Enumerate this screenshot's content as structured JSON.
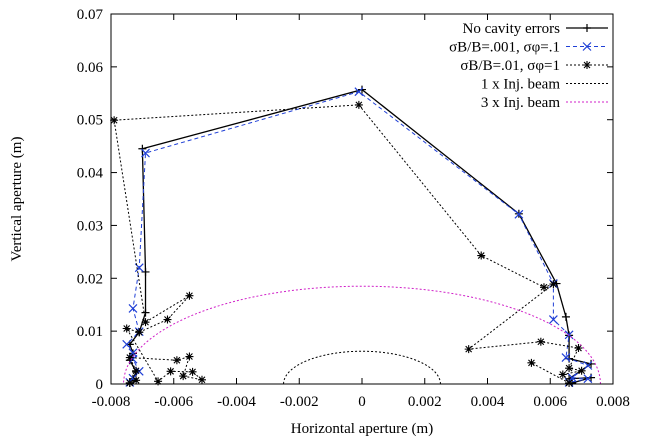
{
  "chart_data": {
    "type": "line",
    "xlabel": "Horizontal aperture (m)",
    "ylabel": "Vertical aperture (m)",
    "xlim": [
      -0.008,
      0.008
    ],
    "ylim": [
      0,
      0.07
    ],
    "x_ticks": [
      -0.008,
      -0.006,
      -0.004,
      -0.002,
      0,
      0.002,
      0.004,
      0.006,
      0.008
    ],
    "x_tick_labels": [
      "-0.008",
      "-0.006",
      "-0.004",
      "-0.002",
      "0",
      "0.002",
      "0.004",
      "0.006",
      "0.008"
    ],
    "y_ticks": [
      0,
      0.01,
      0.02,
      0.03,
      0.04,
      0.05,
      0.06,
      0.07
    ],
    "y_tick_labels": [
      "0",
      "0.01",
      "0.02",
      "0.03",
      "0.04",
      "0.05",
      "0.06",
      "0.07"
    ],
    "grid": false,
    "legend_position": "top-right",
    "series": [
      {
        "name": "No cavity errors",
        "color": "#000000",
        "line": "solid",
        "marker": "plus",
        "points": [
          [
            -0.0074,
            0.0002
          ],
          [
            -0.0073,
            0.001
          ],
          [
            -0.0072,
            0.0023
          ],
          [
            -0.0074,
            0.0045
          ],
          [
            -0.0073,
            0.0058
          ],
          [
            -0.0074,
            0.0075
          ],
          [
            -0.0071,
            0.0098
          ],
          [
            -0.0069,
            0.0135
          ],
          [
            -0.0069,
            0.0212
          ],
          [
            -0.007,
            0.0445
          ],
          [
            0.0,
            0.0557
          ],
          [
            0.005,
            0.0322
          ],
          [
            0.0062,
            0.019
          ],
          [
            0.0065,
            0.0127
          ],
          [
            0.0066,
            0.0092
          ],
          [
            0.0066,
            0.0048
          ],
          [
            0.0073,
            0.0038
          ],
          [
            0.0066,
            0.001
          ],
          [
            0.0073,
            0.0012
          ],
          [
            0.0067,
            0.0002
          ]
        ]
      },
      {
        "name": "σB/B=.001, σφ=.1",
        "color": "#1f3fd6",
        "line": "dashed",
        "marker": "x",
        "points": [
          [
            -0.0074,
            0.0003
          ],
          [
            -0.0073,
            0.0011
          ],
          [
            -0.0071,
            0.0024
          ],
          [
            -0.0073,
            0.0047
          ],
          [
            -0.0073,
            0.0059
          ],
          [
            -0.0075,
            0.0075
          ],
          [
            -0.0071,
            0.0099
          ],
          [
            -0.0073,
            0.0143
          ],
          [
            -0.0071,
            0.022
          ],
          [
            -0.0069,
            0.0437
          ],
          [
            -0.0001,
            0.0553
          ],
          [
            0.005,
            0.0321
          ],
          [
            0.0061,
            0.019
          ],
          [
            0.0061,
            0.0122
          ],
          [
            0.0066,
            0.0093
          ],
          [
            0.0065,
            0.005
          ],
          [
            0.0072,
            0.0035
          ],
          [
            0.0067,
            0.0012
          ],
          [
            0.0072,
            0.001
          ],
          [
            0.0066,
            0.0003
          ]
        ]
      },
      {
        "name": "σB/B=.01, σφ=1",
        "color": "#000000",
        "line": "dotted",
        "marker": "star",
        "points": [
          [
            -0.0074,
            0.0002
          ],
          [
            -0.0072,
            0.0007
          ],
          [
            -0.0072,
            0.0025
          ],
          [
            -0.0074,
            0.005
          ],
          [
            -0.0059,
            0.0045
          ],
          [
            -0.0055,
            0.0052
          ],
          [
            -0.0057,
            0.0015
          ],
          [
            -0.0051,
            0.0008
          ],
          [
            -0.0054,
            0.0023
          ],
          [
            -0.0061,
            0.0024
          ],
          [
            -0.0065,
            0.0005
          ],
          [
            -0.0075,
            0.0105
          ],
          [
            -0.0071,
            0.0098
          ],
          [
            -0.0062,
            0.0122
          ],
          [
            -0.0055,
            0.0167
          ],
          [
            -0.0069,
            0.0117
          ],
          [
            -0.0079,
            0.0499
          ],
          [
            -0.0001,
            0.0528
          ],
          [
            0.0038,
            0.0243
          ],
          [
            0.0058,
            0.0183
          ],
          [
            0.0061,
            0.0189
          ],
          [
            0.0034,
            0.0066
          ],
          [
            0.0057,
            0.008
          ],
          [
            0.0069,
            0.0068
          ],
          [
            0.0066,
            0.003
          ],
          [
            0.007,
            0.0025
          ],
          [
            0.0064,
            0.0018
          ],
          [
            0.0066,
            0.0002
          ],
          [
            0.0054,
            0.004
          ]
        ]
      },
      {
        "name": "1 x Inj. beam",
        "color": "#000000",
        "line": "dotted",
        "marker": "none",
        "ellipse": {
          "a": 0.0025,
          "b": 0.0062
        }
      },
      {
        "name": "3 x Inj. beam",
        "color": "#d020c8",
        "line": "dotted",
        "marker": "none",
        "ellipse": {
          "a": 0.0076,
          "b": 0.0185
        }
      }
    ]
  }
}
